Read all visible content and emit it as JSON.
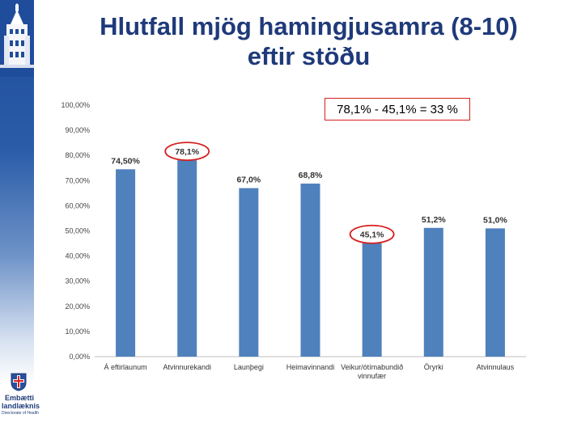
{
  "header": {
    "title_line1": "Hlutfall mjög hamingjusamra (8-10)",
    "title_line2": "eftir stöðu"
  },
  "annotation": {
    "formula": "78,1% - 45,1% = 33 %"
  },
  "logo": {
    "line1": "Embætti",
    "line2": "landlæknis",
    "line3": "Directorate of Health"
  },
  "colors": {
    "bar": "#4f81bd",
    "highlight": "#d62020",
    "title": "#1f3a7a",
    "sidebar": "#1f4d9b"
  },
  "chart_data": {
    "type": "bar",
    "categories": [
      [
        "Á eftirlaunum"
      ],
      [
        "Atvinnurekandi"
      ],
      [
        "Launþegi"
      ],
      [
        "Heimavinnandi"
      ],
      [
        "Veikur/ótímabundið",
        "vinnufær"
      ],
      [
        "Öryrki"
      ],
      [
        "Atvinnulaus"
      ]
    ],
    "values": [
      74.5,
      78.1,
      67.0,
      68.8,
      45.1,
      51.2,
      51.0
    ],
    "data_labels": [
      "74,50%",
      "78,1%",
      "67,0%",
      "68,8%",
      "45,1%",
      "51,2%",
      "51,0%"
    ],
    "highlighted": [
      1,
      4
    ],
    "y_ticks": [
      "0,00%",
      "10,00%",
      "20,00%",
      "30,00%",
      "40,00%",
      "50,00%",
      "60,00%",
      "70,00%",
      "80,00%",
      "90,00%",
      "100,00%"
    ],
    "ylim": [
      0,
      100
    ],
    "grid": false,
    "legend": "none"
  }
}
